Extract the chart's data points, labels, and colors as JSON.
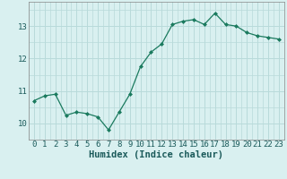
{
  "x": [
    0,
    1,
    2,
    3,
    4,
    5,
    6,
    7,
    8,
    9,
    10,
    11,
    12,
    13,
    14,
    15,
    16,
    17,
    18,
    19,
    20,
    21,
    22,
    23
  ],
  "y": [
    10.7,
    10.85,
    10.9,
    10.25,
    10.35,
    10.3,
    10.2,
    9.8,
    10.35,
    10.9,
    11.75,
    12.2,
    12.45,
    13.05,
    13.15,
    13.2,
    13.05,
    13.4,
    13.05,
    13.0,
    12.8,
    12.7,
    12.65,
    12.6
  ],
  "title": "",
  "xlabel": "Humidex (Indice chaleur)",
  "ylabel": "",
  "ylim": [
    9.5,
    13.75
  ],
  "xlim": [
    -0.5,
    23.5
  ],
  "line_color": "#1a7a5e",
  "marker_color": "#1a7a5e",
  "bg_color": "#d9f0f0",
  "grid_color": "#b8dada",
  "label_fontsize": 7.5,
  "tick_fontsize": 6.5
}
